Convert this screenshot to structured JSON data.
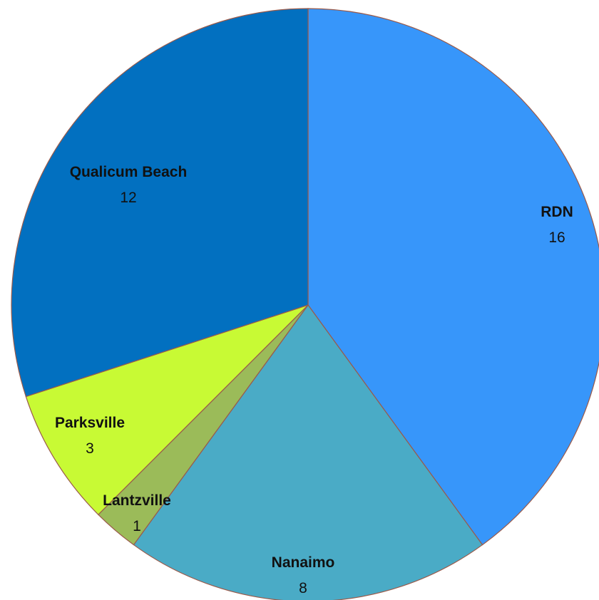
{
  "chart_data": {
    "type": "pie",
    "start_angle_deg": 0,
    "direction": "clockwise",
    "slices": [
      {
        "label": "RDN",
        "value": 16,
        "color": "#3796fa"
      },
      {
        "label": "Nanaimo",
        "value": 8,
        "color": "#4aabc6"
      },
      {
        "label": "Lantzville",
        "value": 1,
        "color": "#9bbb59"
      },
      {
        "label": "Parksville",
        "value": 3,
        "color": "#c8fa34"
      },
      {
        "label": "Qualicum Beach",
        "value": 12,
        "color": "#0270c0"
      }
    ],
    "slice_border_color": "#9a5a4a"
  }
}
